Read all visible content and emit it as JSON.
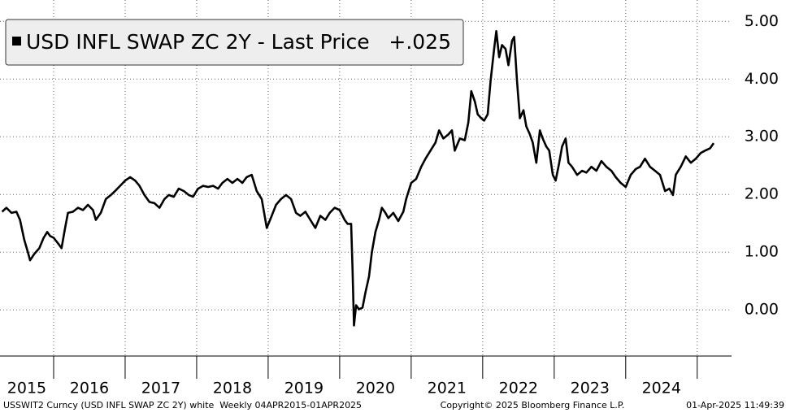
{
  "chart_data": {
    "type": "line",
    "series": [
      {
        "name": "USD INFL SWAP ZC 2Y - Last Price",
        "color": "#000000",
        "values": [
          1.7,
          1.77,
          1.68,
          1.7,
          1.56,
          1.21,
          1.0,
          0.86,
          0.97,
          1.07,
          1.25,
          1.35,
          1.28,
          1.25,
          1.14,
          1.07,
          1.42,
          1.68,
          1.7,
          1.77,
          1.73,
          1.82,
          1.73,
          1.56,
          1.68,
          1.92,
          1.99,
          2.06,
          2.15,
          2.24,
          2.3,
          2.24,
          2.15,
          1.99,
          1.87,
          1.85,
          1.77,
          1.92,
          1.99,
          1.96,
          2.1,
          2.06,
          1.99,
          1.96,
          2.1,
          2.15,
          2.13,
          2.15,
          2.1,
          2.2,
          2.27,
          2.2,
          2.27,
          2.2,
          2.3,
          2.34,
          2.06,
          1.92,
          1.42,
          1.63,
          1.82,
          1.92,
          1.99,
          1.92,
          1.68,
          1.63,
          1.7,
          1.56,
          1.42,
          1.63,
          1.56,
          1.68,
          1.77,
          1.73,
          1.56,
          1.49,
          1.49,
          0.72,
          -0.27,
          0.08,
          0.01,
          0.04,
          0.3,
          0.58,
          1.0,
          1.35,
          1.56,
          1.77,
          1.68,
          1.59,
          1.68,
          1.54,
          1.7,
          1.92,
          2.2,
          2.27,
          2.48,
          2.62,
          2.76,
          2.9,
          3.11,
          2.97,
          3.04,
          3.11,
          2.76,
          2.97,
          2.94,
          3.25,
          3.79,
          3.61,
          3.39,
          3.32,
          3.28,
          3.39,
          3.96,
          4.52,
          4.83,
          4.38,
          4.59,
          4.52,
          4.24,
          4.66,
          4.73,
          3.96,
          3.32,
          3.46,
          3.18,
          3.04,
          2.9,
          2.55,
          3.11,
          2.97,
          2.83,
          2.76,
          2.34,
          2.24,
          2.55,
          2.83,
          2.97,
          2.55,
          2.48,
          2.34,
          2.41,
          2.38,
          2.48,
          2.41,
          2.58,
          2.48,
          2.41,
          2.3,
          2.2,
          2.13,
          2.34,
          2.44,
          2.48,
          2.62,
          2.48,
          2.41,
          2.34,
          2.06,
          2.1,
          1.99,
          2.34,
          2.48,
          2.66,
          2.55,
          2.62,
          2.72,
          2.76,
          2.8,
          2.89
        ]
      }
    ],
    "x": [
      2015.28,
      2015.34,
      2015.41,
      2015.48,
      2015.53,
      2015.59,
      2015.64,
      2015.67,
      2015.73,
      2015.8,
      2015.86,
      2015.91,
      2015.95,
      2016.0,
      2016.07,
      2016.11,
      2016.16,
      2016.2,
      2016.27,
      2016.34,
      2016.41,
      2016.48,
      2016.55,
      2016.59,
      2016.66,
      2016.73,
      2016.8,
      2016.86,
      2016.93,
      2017.0,
      2017.07,
      2017.14,
      2017.2,
      2017.27,
      2017.34,
      2017.41,
      2017.48,
      2017.55,
      2017.61,
      2017.68,
      2017.75,
      2017.82,
      2017.89,
      2017.95,
      2018.02,
      2018.09,
      2018.16,
      2018.23,
      2018.3,
      2018.36,
      2018.43,
      2018.5,
      2018.57,
      2018.64,
      2018.7,
      2018.77,
      2018.84,
      2018.91,
      2018.98,
      2019.05,
      2019.11,
      2019.18,
      2019.25,
      2019.32,
      2019.39,
      2019.45,
      2019.52,
      2019.59,
      2019.66,
      2019.73,
      2019.8,
      2019.86,
      2019.93,
      2020.0,
      2020.07,
      2020.11,
      2020.16,
      2020.18,
      2020.2,
      2020.23,
      2020.27,
      2020.32,
      2020.36,
      2020.41,
      2020.45,
      2020.5,
      2020.55,
      2020.59,
      2020.64,
      2020.68,
      2020.75,
      2020.82,
      2020.89,
      2020.93,
      2021.0,
      2021.07,
      2021.14,
      2021.2,
      2021.27,
      2021.34,
      2021.39,
      2021.45,
      2021.52,
      2021.57,
      2021.61,
      2021.68,
      2021.75,
      2021.8,
      2021.84,
      2021.89,
      2021.93,
      2021.98,
      2022.02,
      2022.07,
      2022.11,
      2022.16,
      2022.19,
      2022.23,
      2022.27,
      2022.32,
      2022.36,
      2022.41,
      2022.44,
      2022.48,
      2022.52,
      2022.57,
      2022.61,
      2022.66,
      2022.7,
      2022.75,
      2022.8,
      2022.84,
      2022.89,
      2022.93,
      2022.98,
      2023.02,
      2023.07,
      2023.11,
      2023.16,
      2023.2,
      2023.25,
      2023.32,
      2023.39,
      2023.45,
      2023.52,
      2023.59,
      2023.66,
      2023.73,
      2023.8,
      2023.86,
      2023.93,
      2024.0,
      2024.07,
      2024.14,
      2024.2,
      2024.27,
      2024.34,
      2024.41,
      2024.48,
      2024.55,
      2024.61,
      2024.66,
      2024.7,
      2024.77,
      2024.84,
      2024.91,
      2024.98,
      2025.05,
      2025.11,
      2025.18,
      2025.23
    ],
    "xlim": [
      2015.25,
      2025.48
    ],
    "xticks": [
      2016,
      2017,
      2018,
      2019,
      2020,
      2021,
      2022,
      2023,
      2024,
      2025
    ],
    "x_band_labels": [
      "2015",
      "2016",
      "2017",
      "2018",
      "2019",
      "2020",
      "2021",
      "2022",
      "2023",
      "2024"
    ],
    "ylim": [
      -0.8,
      5.37
    ],
    "yticks": [
      {
        "value": 0,
        "label": "0.00"
      },
      {
        "value": 1,
        "label": "1.00"
      },
      {
        "value": 2,
        "label": "2.00"
      },
      {
        "value": 3,
        "label": "3.00"
      },
      {
        "value": 4,
        "label": "4.00"
      },
      {
        "value": 5,
        "label": "5.00"
      }
    ],
    "grid": true,
    "legend_value": "+.025"
  },
  "footer": {
    "left": "USSWIT2 Curncy (USD INFL SWAP ZC 2Y) white  Weekly 04APR2015-01APR2025",
    "center": "Copyright© 2025 Bloomberg Finance L.P.",
    "right": "01-Apr-2025 11:49:39"
  }
}
